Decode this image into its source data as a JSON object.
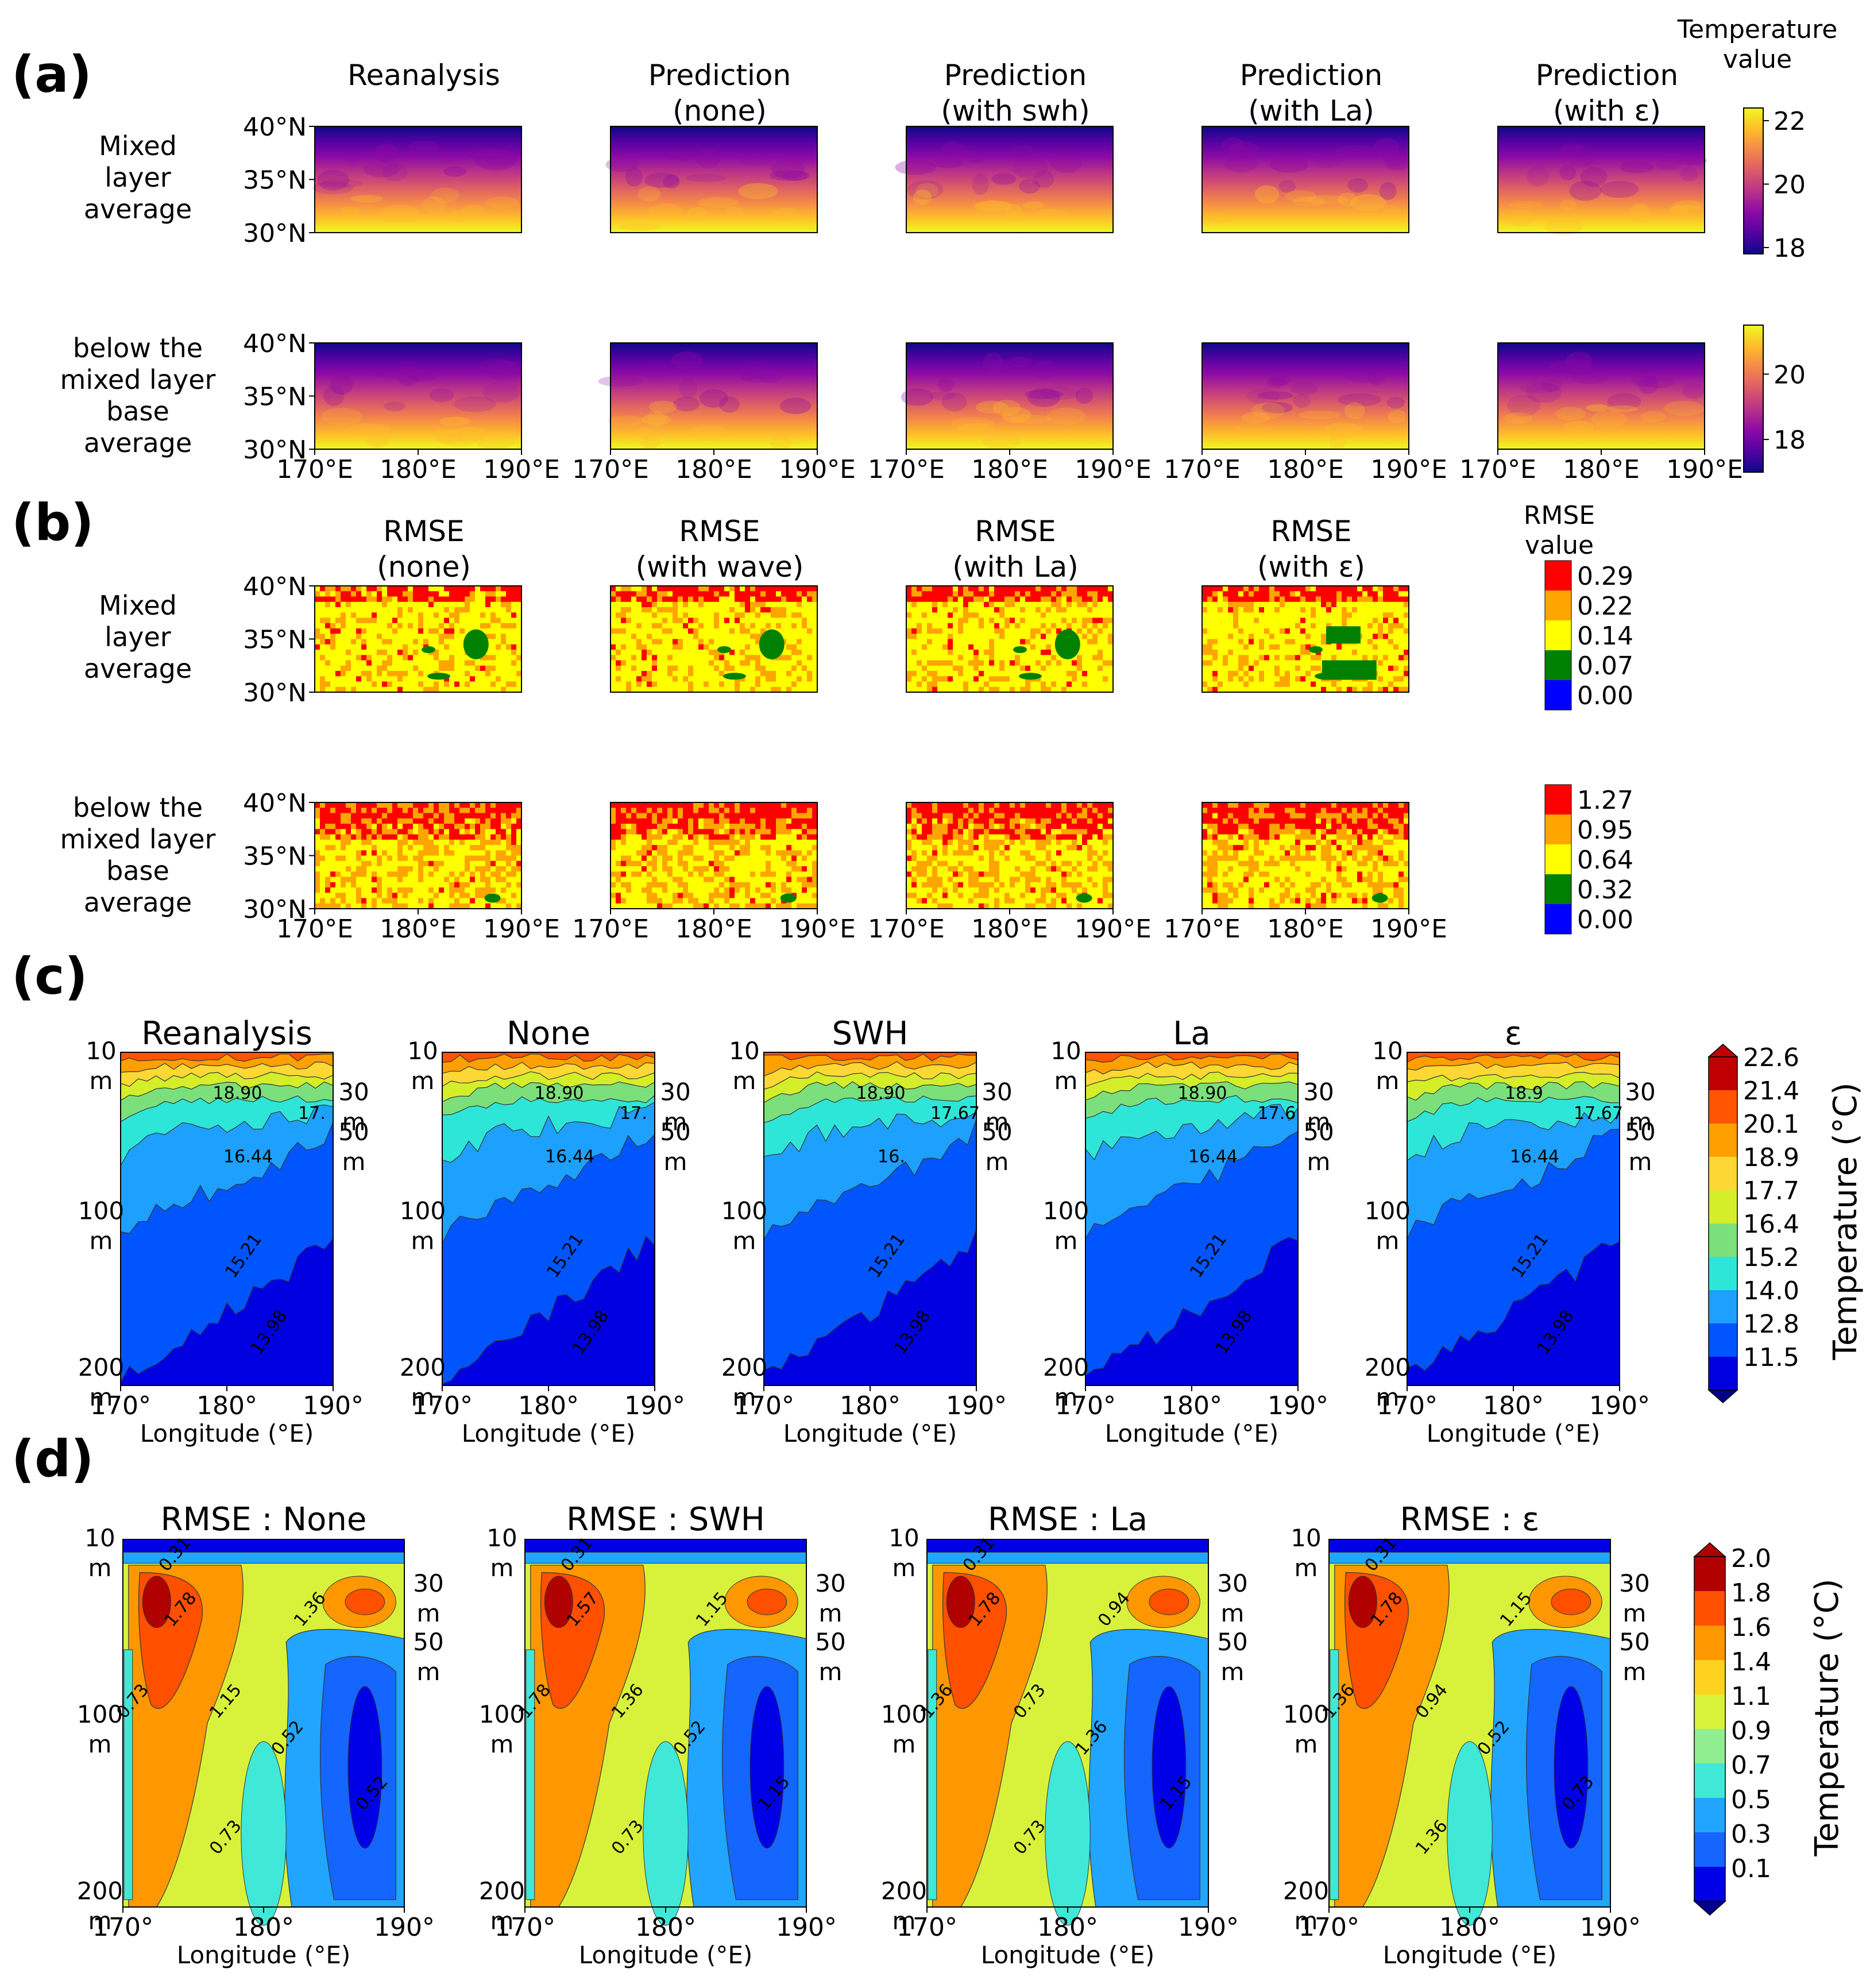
{
  "panel_labels": [
    "(a)",
    "(b)",
    "(c)",
    "(d)"
  ],
  "colors": {
    "plasma": [
      "#0d0887",
      "#5402a3",
      "#8b0aa5",
      "#b93289",
      "#db5c68",
      "#f48849",
      "#febd2a",
      "#f0f921"
    ],
    "rmse_levels": [
      "#0000ff",
      "#008000",
      "#ffff00",
      "#ffa500",
      "#ff0000"
    ],
    "temp_levels": [
      "#00008b",
      "#0000e0",
      "#0055ff",
      "#1ea0ff",
      "#2ee6d8",
      "#7be07b",
      "#d4ee2a",
      "#fdd835",
      "#ffa000",
      "#ff5500",
      "#c00000"
    ],
    "rmse_depth_levels": [
      "#00008b",
      "#0000e6",
      "#1565ff",
      "#21a5ff",
      "#40e8d8",
      "#90ee90",
      "#d8f23c",
      "#ffd21f",
      "#ff9800",
      "#ff5000",
      "#b00000"
    ]
  },
  "chart_data": [
    {
      "id": "a",
      "type": "heatmap",
      "colormap": "plasma",
      "columns": [
        "Reanalysis",
        "Prediction\n(none)",
        "Prediction\n(with swh)",
        "Prediction\n(with La)",
        "Prediction\n(with ε)"
      ],
      "rows": [
        "Mixed\nlayer\naverage",
        "below the\nmixed layer\nbase\naverage"
      ],
      "y_ticks": [
        "40°N",
        "35°N",
        "30°N"
      ],
      "x_ticks": [
        "170°E",
        "180°E",
        "190°E"
      ],
      "colorbar_title": "Temperature\nvalue",
      "colorbars": [
        {
          "ticks": [
            "22",
            "20",
            "18"
          ],
          "range": [
            17.8,
            22.4
          ]
        },
        {
          "ticks": [
            "20",
            "18"
          ],
          "range": [
            17.0,
            21.5
          ]
        }
      ]
    },
    {
      "id": "b",
      "type": "heatmap",
      "colormap": "rmse_levels",
      "columns": [
        "RMSE\n(none)",
        "RMSE\n(with wave)",
        "RMSE\n(with La)",
        "RMSE\n(with ε)"
      ],
      "rows": [
        "Mixed\nlayer\naverage",
        "below the\nmixed layer\nbase\naverage"
      ],
      "y_ticks": [
        "40°N",
        "35°N",
        "30°N"
      ],
      "x_ticks": [
        "170°E",
        "180°E",
        "190°E"
      ],
      "colorbar_title": "RMSE\nvalue",
      "colorbars": [
        {
          "ticks": [
            "0.29",
            "0.22",
            "0.14",
            "0.07",
            "0.00"
          ]
        },
        {
          "ticks": [
            "1.27",
            "0.95",
            "0.64",
            "0.32",
            "0.00"
          ]
        }
      ]
    },
    {
      "id": "c",
      "type": "contourf",
      "titles": [
        "Reanalysis",
        "None",
        "SWH",
        "La",
        "ε"
      ],
      "x_ticks": [
        "170°",
        "180°",
        "190°"
      ],
      "xlabel": "Longitude (°E)",
      "y_ticks_left": [
        "10\nm",
        "100\nm",
        "200\nm"
      ],
      "y_ticks_right": [
        "30\nm",
        "50\nm"
      ],
      "contour_labels": [
        [
          "18.90",
          "17.",
          "16.44",
          "15.21",
          "13.98"
        ],
        [
          "18.90",
          "17.",
          "16.44",
          "15.21",
          "13.98"
        ],
        [
          "18.90",
          "17.67",
          "16.",
          "15.21",
          "13.98"
        ],
        [
          "18.90",
          "17.6",
          "16.44",
          "15.21",
          "13.98"
        ],
        [
          "18.9",
          "17.67",
          "16.44",
          "15.21",
          "13.98"
        ]
      ],
      "colorbar_ticks": [
        "22.6",
        "21.4",
        "20.1",
        "18.9",
        "17.7",
        "16.4",
        "15.2",
        "14.0",
        "12.8",
        "11.5"
      ],
      "colorbar_label": "Temperature (°C)"
    },
    {
      "id": "d",
      "type": "contourf",
      "titles": [
        "RMSE : None",
        "RMSE : SWH",
        "RMSE : La",
        "RMSE : ε"
      ],
      "x_ticks": [
        "170°",
        "180°",
        "190°"
      ],
      "xlabel": "Longitude (°E)",
      "y_ticks_left": [
        "10\nm",
        "100\nm",
        "200\nm"
      ],
      "y_ticks_right": [
        "30\nm",
        "50\nm"
      ],
      "contour_labels": [
        [
          "0.31",
          "0.73",
          "1.78",
          "1.36",
          "1.15",
          "0.52",
          "0.73",
          "0.52"
        ],
        [
          "0.31",
          "1.78",
          "1.57",
          "1.15",
          "1.36",
          "0.52",
          "0.73",
          "1.15"
        ],
        [
          "0.31",
          "1.36",
          "1.78",
          "0.94",
          "0.73",
          "1.36",
          "0.73",
          "1.15"
        ],
        [
          "0.31",
          "1.36",
          "1.78",
          "1.15",
          "0.94",
          "0.52",
          "1.36",
          "0.73"
        ]
      ],
      "colorbar_ticks": [
        "2.0",
        "1.8",
        "1.6",
        "1.4",
        "1.1",
        "0.9",
        "0.7",
        "0.5",
        "0.3",
        "0.1"
      ],
      "colorbar_label": "Temperature (°C)"
    }
  ]
}
